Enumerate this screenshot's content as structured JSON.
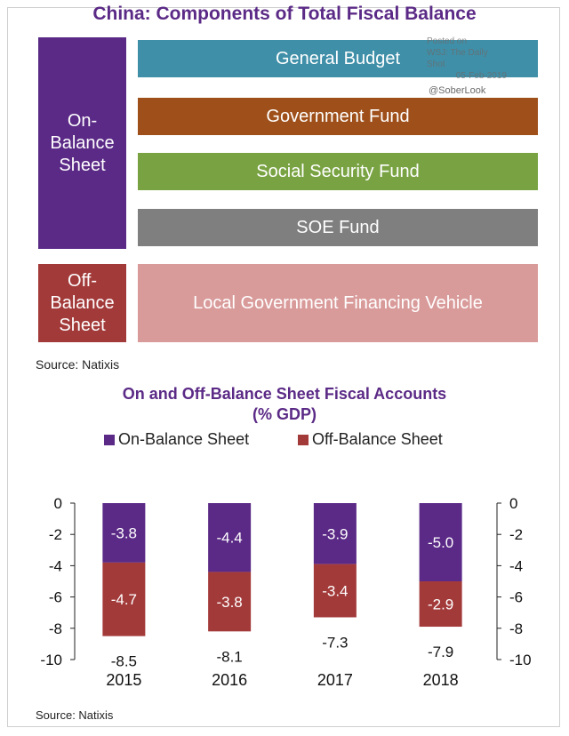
{
  "diagram": {
    "title": "China: Components of Total Fiscal Balance",
    "on_balance_label": "On-\nBalance\nSheet",
    "off_balance_label": "Off-\nBalance\nSheet",
    "components": [
      {
        "label": "General Budget",
        "color": "#3f8fa8"
      },
      {
        "label": "Government Fund",
        "color": "#9e4f1a"
      },
      {
        "label": "Social Security Fund",
        "color": "#79a342"
      },
      {
        "label": "SOE Fund",
        "color": "#7f7f7f"
      },
      {
        "label": "Local Government Financing Vehicle",
        "color": "#d99a9a"
      }
    ],
    "colors": {
      "on_balance": "#5b2a86",
      "off_balance": "#a33a3a"
    },
    "source": "Source: Natixis"
  },
  "watermark": {
    "posted": "Posted on",
    "outlet": "WSJ: The Daily Shot",
    "date": "05-Feb-2019",
    "handle": "@SoberLook"
  },
  "chart_data": {
    "type": "bar",
    "stacked": true,
    "title": "On and Off-Balance Sheet Fiscal Accounts",
    "subtitle": "(% GDP)",
    "categories": [
      "2015",
      "2016",
      "2017",
      "2018"
    ],
    "series": [
      {
        "name": "On-Balance Sheet",
        "values": [
          -3.8,
          -4.4,
          -3.9,
          -5.0
        ],
        "color": "#5b2a86"
      },
      {
        "name": "Off-Balance Sheet",
        "values": [
          -4.7,
          -3.8,
          -3.4,
          -2.9
        ],
        "color": "#a33a3a"
      }
    ],
    "totals": [
      -8.5,
      -8.1,
      -7.3,
      -7.9
    ],
    "ylim": [
      -10,
      0
    ],
    "yticks": [
      "0",
      "-2",
      "-4",
      "-6",
      "-8",
      "-10"
    ],
    "legend_position": "top",
    "grid": false,
    "secondary_y_axis": true,
    "source": "Source: Natixis"
  }
}
